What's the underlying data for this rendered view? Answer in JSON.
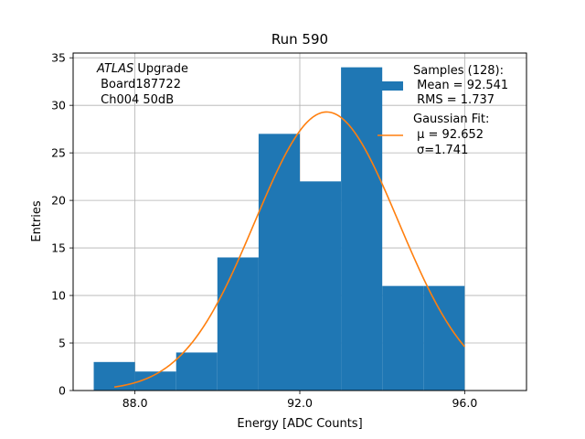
{
  "chart_data": {
    "type": "histogram",
    "title": "Run 590",
    "xlabel": "Energy [ADC Counts]",
    "ylabel": "Entries",
    "xlim": [
      86.5,
      97.5
    ],
    "ylim": [
      0,
      35.5
    ],
    "xticks": [
      88.0,
      92.0,
      96.0
    ],
    "xtick_labels": [
      "88.0",
      "92.0",
      "96.0"
    ],
    "yticks": [
      0,
      5,
      10,
      15,
      20,
      25,
      30,
      35
    ],
    "ytick_labels": [
      "0",
      "5",
      "10",
      "15",
      "20",
      "25",
      "30",
      "35"
    ],
    "grid": true,
    "bars_color": "#1f77b4",
    "fit_color": "#ff7f0e",
    "bins": [
      {
        "x0": 87.0,
        "x1": 88.0,
        "count": 3
      },
      {
        "x0": 88.0,
        "x1": 89.0,
        "count": 2
      },
      {
        "x0": 89.0,
        "x1": 90.0,
        "count": 4
      },
      {
        "x0": 90.0,
        "x1": 91.0,
        "count": 14
      },
      {
        "x0": 91.0,
        "x1": 92.0,
        "count": 27
      },
      {
        "x0": 92.0,
        "x1": 93.0,
        "count": 22
      },
      {
        "x0": 93.0,
        "x1": 94.0,
        "count": 34
      },
      {
        "x0": 94.0,
        "x1": 95.0,
        "count": 11
      },
      {
        "x0": 95.0,
        "x1": 96.0,
        "count": 11
      }
    ],
    "fit": {
      "mu": 92.652,
      "sigma": 1.741,
      "amplitude": 29.3,
      "x_start": 87.5,
      "x_end": 96.0
    },
    "annotation": {
      "line1_italic": "ATLAS",
      "line1_rest": " Upgrade",
      "line2": " Board187722",
      "line3": " Ch004 50dB"
    },
    "legend": {
      "samples_title": "Samples (128):",
      "samples_mean": " Mean = 92.541",
      "samples_rms": " RMS = 1.737",
      "fit_title": "Gaussian Fit:",
      "fit_mu": " μ = 92.652",
      "fit_sigma": "σ=1.741"
    }
  }
}
